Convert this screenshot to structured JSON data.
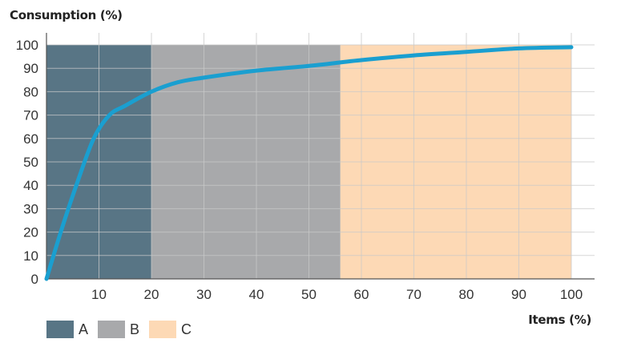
{
  "chart_data": {
    "type": "line",
    "ylabel": "Consumption (%)",
    "xlabel": "Items (%)",
    "xlim": [
      0,
      100
    ],
    "ylim": [
      0,
      100
    ],
    "x_ticks": [
      10,
      20,
      30,
      40,
      50,
      60,
      70,
      80,
      90,
      100
    ],
    "y_ticks": [
      0,
      10,
      20,
      30,
      40,
      50,
      60,
      70,
      80,
      90,
      100
    ],
    "grid": true,
    "zones": [
      {
        "name": "A",
        "x_start": 0,
        "x_end": 20,
        "color": "#587585"
      },
      {
        "name": "B",
        "x_start": 20,
        "x_end": 56,
        "color": "#a8a9ab"
      },
      {
        "name": "C",
        "x_start": 56,
        "x_end": 100,
        "color": "#fdd9b5"
      }
    ],
    "series": [
      {
        "color": "#1a9fd0",
        "x": [
          0,
          3,
          6,
          9,
          12,
          15,
          20,
          25,
          30,
          40,
          50,
          56,
          60,
          70,
          80,
          90,
          100
        ],
        "y": [
          0,
          22,
          42,
          60,
          70,
          74,
          80,
          84,
          86,
          89,
          91,
          92.5,
          93.5,
          95.5,
          97,
          98.5,
          99
        ]
      }
    ],
    "legend_position": "bottom-left"
  }
}
